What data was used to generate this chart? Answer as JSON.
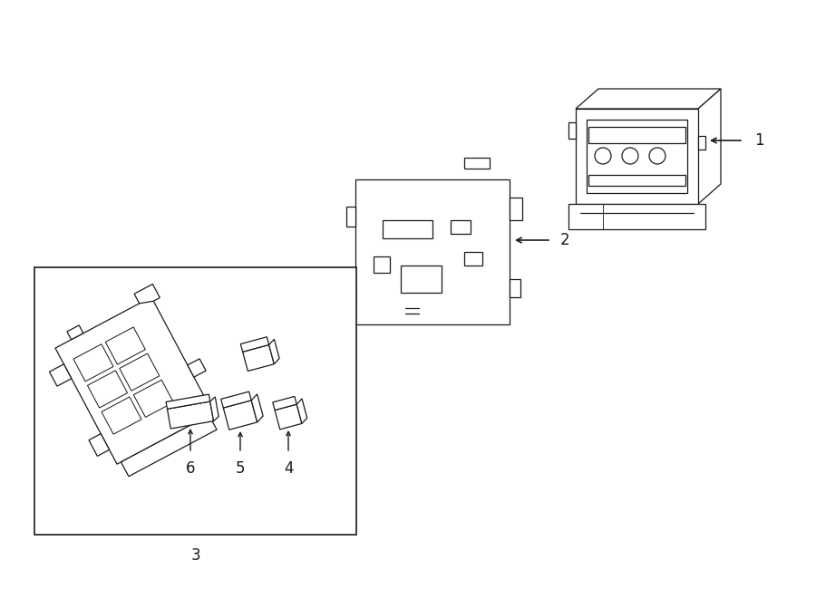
{
  "title": "",
  "bg_color": "#ffffff",
  "line_color": "#1a1a1a",
  "fig_width": 9.0,
  "fig_height": 6.61,
  "dpi": 100,
  "lw": 0.9
}
